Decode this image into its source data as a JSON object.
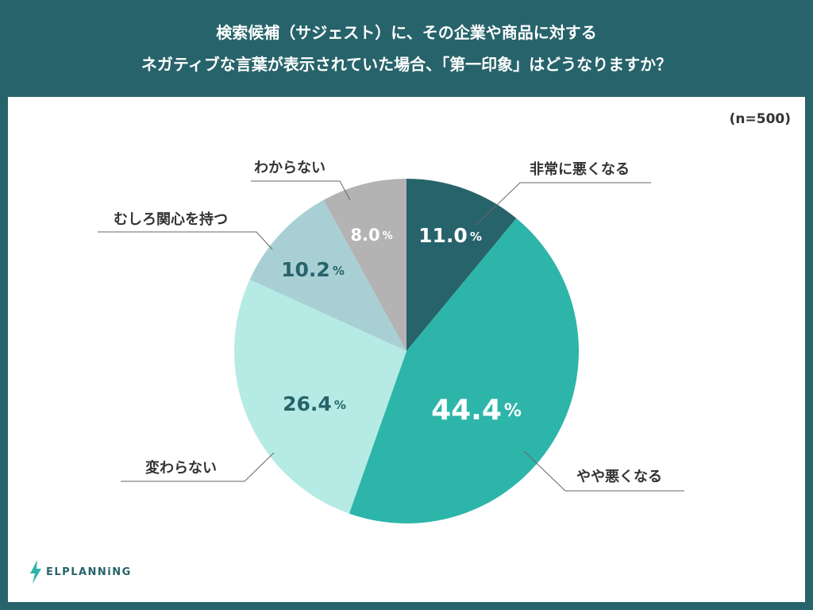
{
  "header": {
    "title_lines": [
      "検索候補（サジェスト）に、その企業や商品に対する",
      "ネガティブな言葉が表示されていた場合、「第一印象」はどうなりますか？"
    ]
  },
  "sample": "(n=500)",
  "logo": {
    "text": "ELPLANNiNG",
    "icon": "lightning-icon"
  },
  "chart_data": {
    "type": "pie",
    "categories": [
      "非常に悪くなる",
      "やや悪くなる",
      "変わらない",
      "むしろ関心を持つ",
      "わからない"
    ],
    "values": [
      11.0,
      44.4,
      26.4,
      10.2,
      8.0
    ],
    "value_labels": [
      "11.0",
      "44.4",
      "26.4",
      "10.2",
      "8.0"
    ],
    "unit": "%",
    "start": "top",
    "direction": "clockwise",
    "colors": [
      "#27636a",
      "#2db5aa",
      "#b5ebe4",
      "#a8d0d4",
      "#b3b3b3"
    ],
    "value_label_colors": [
      "#ffffff",
      "#ffffff",
      "#27636a",
      "#27636a",
      "#ffffff"
    ]
  }
}
